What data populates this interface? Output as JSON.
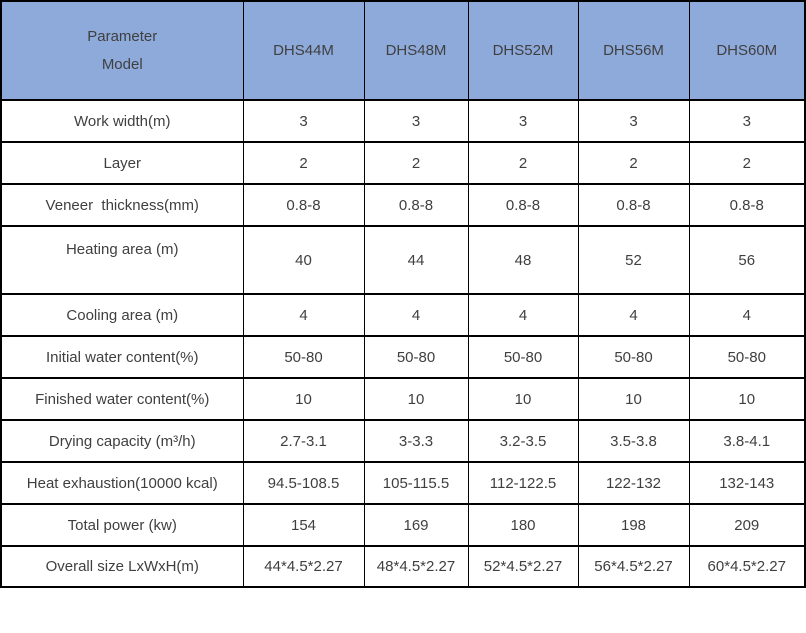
{
  "header": {
    "corner_line1": "Parameter",
    "corner_line2": "Model"
  },
  "chart_data": {
    "type": "table",
    "title": "",
    "columns": [
      "Parameter Model",
      "DHS44M",
      "DHS48M",
      "DHS52M",
      "DHS56M",
      "DHS60M"
    ],
    "rows": [
      [
        "Work width(m)",
        "3",
        "3",
        "3",
        "3",
        "3"
      ],
      [
        "Layer",
        "2",
        "2",
        "2",
        "2",
        "2"
      ],
      [
        "Veneer  thickness(mm)",
        "0.8-8",
        "0.8-8",
        "0.8-8",
        "0.8-8",
        "0.8-8"
      ],
      [
        "Heating area (m)",
        "40",
        "44",
        "48",
        "52",
        "56"
      ],
      [
        "Cooling area (m)",
        "4",
        "4",
        "4",
        "4",
        "4"
      ],
      [
        "Initial water content(%)",
        "50-80",
        "50-80",
        "50-80",
        "50-80",
        "50-80"
      ],
      [
        "Finished water content(%)",
        "10",
        "10",
        "10",
        "10",
        "10"
      ],
      [
        "Drying capacity (m³/h)",
        "2.7-3.1",
        "3-3.3",
        "3.2-3.5",
        "3.5-3.8",
        "3.8-4.1"
      ],
      [
        "Heat exhaustion(10000 kcal)",
        "94.5-108.5",
        "105-115.5",
        "112-122.5",
        "122-132",
        "132-143"
      ],
      [
        "Total power (kw)",
        "154",
        "169",
        "180",
        "198",
        "209"
      ],
      [
        "Overall size LxWxH(m)",
        "44*4.5*2.27",
        "48*4.5*2.27",
        "52*4.5*2.27",
        "56*4.5*2.27",
        "60*4.5*2.27"
      ]
    ]
  },
  "colors": {
    "header_bg": "#8EAADB",
    "border": "#000000",
    "text": "#3F3F3F",
    "background": "#FFFFFF"
  }
}
